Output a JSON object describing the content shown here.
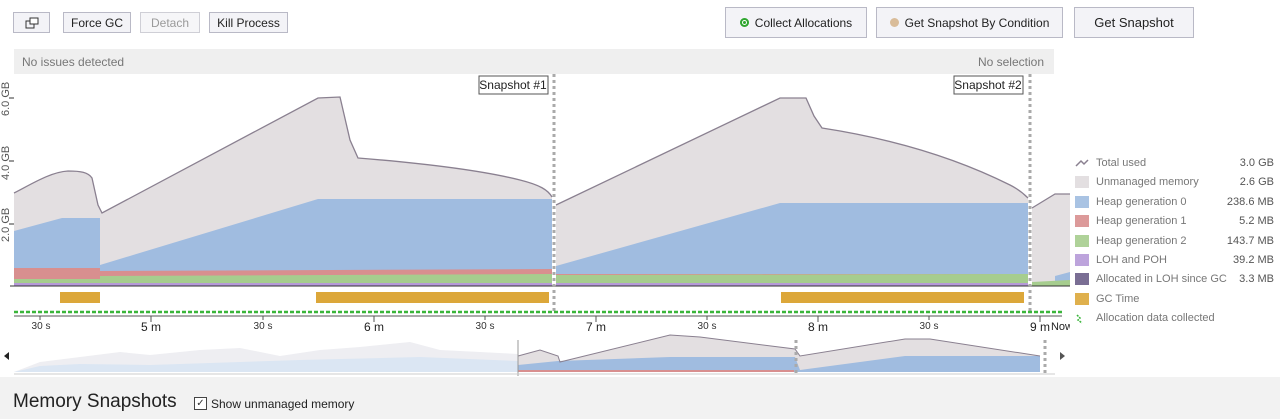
{
  "toolbar": {
    "force_gc": "Force GC",
    "detach": "Detach",
    "kill_process": "Kill Process",
    "collect_allocations": "Collect Allocations",
    "get_snapshot_by_condition": "Get Snapshot By Condition",
    "get_snapshot": "Get Snapshot"
  },
  "status": {
    "left": "No issues detected",
    "right": "No selection"
  },
  "snapshots": [
    "Snapshot #1",
    "Snapshot #2"
  ],
  "y_axis": [
    "6.0 GB",
    "4.0 GB",
    "2.0 GB"
  ],
  "x_axis": {
    "minor": [
      "30 s",
      "30 s",
      "30 s",
      "30 s",
      "30 s"
    ],
    "major": [
      "5 m",
      "6 m",
      "7 m",
      "8 m",
      "9 m"
    ],
    "now": "Now"
  },
  "legend": [
    {
      "label": "Total used",
      "value": "3.0 GB",
      "color": "#8a8090"
    },
    {
      "label": "Unmanaged memory",
      "value": "2.6 GB",
      "color": "#e3dfe1"
    },
    {
      "label": "Heap generation 0",
      "value": "238.6 MB",
      "color": "#a0bce0"
    },
    {
      "label": "Heap generation 1",
      "value": "5.2 MB",
      "color": "#d88f8f"
    },
    {
      "label": "Heap generation 2",
      "value": "143.7 MB",
      "color": "#a6cd8e"
    },
    {
      "label": "LOH and POH",
      "value": "39.2 MB",
      "color": "#b69ad8"
    },
    {
      "label": "Allocated in LOH since GC",
      "value": "3.3 MB",
      "color": "#6b5e88"
    },
    {
      "label": "GC Time",
      "value": "",
      "color": "#dca73a"
    },
    {
      "label": "Allocation data collected",
      "value": "",
      "color": "#3ab53a"
    }
  ],
  "bottom": {
    "title": "Memory Snapshots",
    "show_unmanaged_label": "Show unmanaged memory",
    "show_unmanaged_checked": true
  },
  "colors": {
    "unmanaged": "#e3dfe1",
    "total_line": "#8a8090",
    "gen0": "#a0bce0",
    "gen1": "#d88f8f",
    "gen2": "#a6cd8e",
    "loh": "#b69ad8",
    "gc_time": "#dca73a",
    "alloc_collected": "#3ab53a"
  }
}
